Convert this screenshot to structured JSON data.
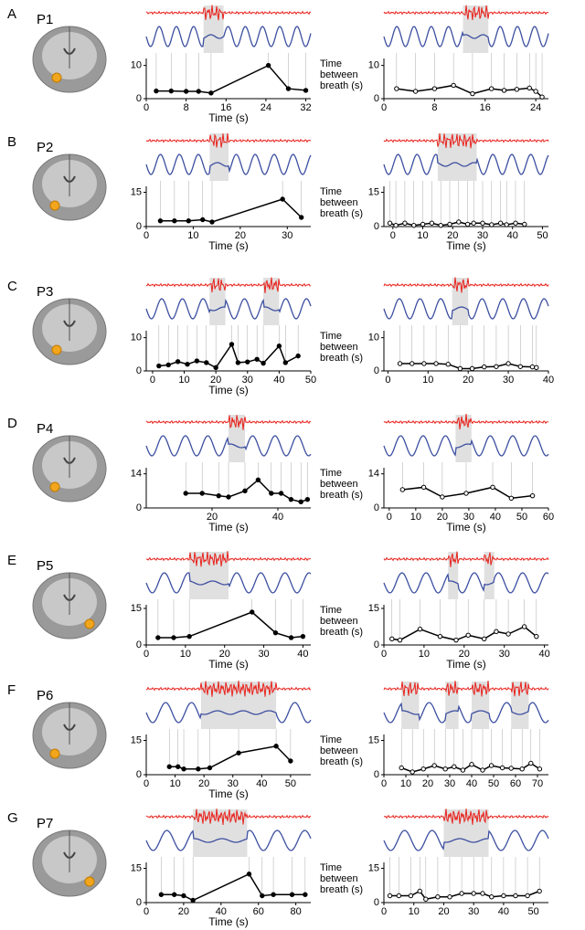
{
  "panels": [
    {
      "label": "A",
      "patient": "P1"
    },
    {
      "label": "B",
      "patient": "P2"
    },
    {
      "label": "C",
      "patient": "P3"
    },
    {
      "label": "D",
      "patient": "P4"
    },
    {
      "label": "E",
      "patient": "P5"
    },
    {
      "label": "F",
      "patient": "P6"
    },
    {
      "label": "G",
      "patient": "P7"
    }
  ],
  "chart_data": [
    {
      "type": "line",
      "color": "#000",
      "xlabel": "Time (s)",
      "ylabel": [
        "Time",
        "between",
        "breath (s)"
      ],
      "xlim": [
        0,
        33
      ],
      "xticks": [
        0,
        8,
        16,
        24,
        32
      ],
      "ylim": [
        0,
        11
      ],
      "yticks": [
        0,
        10
      ],
      "shaded": [
        [
          11.5,
          15.5
        ]
      ],
      "x": [
        2,
        5,
        8,
        10.5,
        13,
        24.5,
        28.5,
        32
      ],
      "values": [
        2.3,
        2.3,
        2.2,
        2.2,
        1.7,
        10,
        3,
        2.5
      ]
    },
    {
      "type": "line",
      "color": "#000",
      "xlim": [
        0,
        26
      ],
      "xticks": [
        0,
        8,
        16,
        24
      ],
      "ylim": [
        0,
        11
      ],
      "yticks": [
        0,
        10
      ],
      "shaded": [
        [
          12.5,
          16.5
        ]
      ],
      "x": [
        2,
        5,
        8,
        11,
        14,
        17,
        19,
        21,
        23,
        24,
        25
      ],
      "values": [
        3,
        2.2,
        3,
        4,
        1.5,
        3,
        2.5,
        2.8,
        3.2,
        2.2,
        0.5
      ]
    },
    {
      "type": "line",
      "color": "#000",
      "xlabel": "Time (s)",
      "ylabel": [
        "Time",
        "between",
        "breath (s)"
      ],
      "xlim": [
        0,
        35
      ],
      "xticks": [
        0,
        10,
        20,
        30
      ],
      "ylim": [
        0,
        16
      ],
      "yticks": [
        0,
        15
      ],
      "shaded": [
        [
          13.5,
          17.5
        ]
      ],
      "x": [
        3,
        6,
        9,
        12,
        14,
        29,
        33
      ],
      "values": [
        2.5,
        2.5,
        2.5,
        3,
        2,
        12,
        4
      ]
    },
    {
      "type": "line",
      "color": "#000",
      "xlabel": "Time (s)",
      "xlim": [
        -3,
        52
      ],
      "xticks": [
        0,
        10,
        20,
        30,
        40,
        50
      ],
      "ylim": [
        0,
        16
      ],
      "yticks": [
        0,
        15
      ],
      "shaded": [
        [
          15,
          28
        ]
      ],
      "x": [
        -1,
        1,
        4,
        7,
        10,
        13,
        16,
        19,
        22,
        25,
        27,
        30,
        33,
        36,
        38,
        41,
        44
      ],
      "values": [
        1.5,
        0.5,
        1.5,
        0.5,
        1,
        1.5,
        0.5,
        1,
        2,
        1,
        1.5,
        1.5,
        0.8,
        1.5,
        0.8,
        1.5,
        1
      ]
    },
    {
      "type": "line",
      "color": "#000",
      "xlabel": "Time (s)",
      "ylabel": [
        "Time",
        "between",
        "breath (s)"
      ],
      "xlim": [
        -2,
        50
      ],
      "xticks": [
        0,
        10,
        20,
        30,
        40,
        50
      ],
      "ylim": [
        0,
        11
      ],
      "yticks": [
        0,
        10
      ],
      "shaded": [
        [
          18,
          23
        ],
        [
          35,
          40
        ]
      ],
      "x": [
        2,
        5,
        8,
        11,
        14,
        17,
        20,
        25,
        27,
        30,
        33,
        35,
        40,
        42,
        46
      ],
      "values": [
        1.5,
        1.8,
        2.8,
        2,
        3,
        2.5,
        1,
        8,
        2.5,
        2.7,
        3.5,
        2.3,
        7.5,
        2.5,
        4.5
      ]
    },
    {
      "type": "line",
      "color": "#000",
      "xlim": [
        -1,
        40
      ],
      "xticks": [
        0,
        10,
        20,
        30,
        40
      ],
      "ylim": [
        0,
        11
      ],
      "yticks": [
        0,
        10
      ],
      "shaded": [
        [
          16,
          20
        ]
      ],
      "x": [
        3,
        6,
        9,
        12,
        15,
        18,
        21,
        24,
        27,
        30,
        33,
        36,
        37
      ],
      "values": [
        2.2,
        2.2,
        2.2,
        2.2,
        2,
        0.7,
        0.7,
        1.2,
        1.3,
        2.2,
        1.3,
        1.2,
        1
      ]
    },
    {
      "type": "line",
      "color": "#000",
      "xlabel": "Time (s)",
      "ylabel": [
        "Time",
        "between",
        "breath (s)"
      ],
      "xlim": [
        0,
        50
      ],
      "xticks": [
        20,
        40
      ],
      "ylim": [
        0,
        15
      ],
      "yticks": [
        0,
        14
      ],
      "shaded": [
        [
          25,
          30
        ]
      ],
      "x": [
        12,
        17,
        22,
        25,
        30,
        34,
        38,
        41,
        44,
        47,
        49
      ],
      "values": [
        6,
        6,
        5,
        4.5,
        7,
        11.5,
        6,
        6,
        3.5,
        2.5,
        3.5
      ]
    },
    {
      "type": "line",
      "color": "#000",
      "xlabel": "Time (s)",
      "xlim": [
        -2,
        60
      ],
      "xticks": [
        0,
        10,
        20,
        30,
        40,
        50,
        60
      ],
      "ylim": [
        0,
        15
      ],
      "yticks": [
        0,
        14
      ],
      "shaded": [
        [
          25,
          31
        ]
      ],
      "x": [
        5,
        13,
        20,
        29,
        39,
        46,
        54
      ],
      "values": [
        7.5,
        8.5,
        4.5,
        6,
        8.5,
        4,
        5
      ]
    },
    {
      "type": "line",
      "color": "#000",
      "xlabel": "Time (s)",
      "ylabel": [
        "Time",
        "between",
        "breath (s)"
      ],
      "xlim": [
        0,
        42
      ],
      "xticks": [
        0,
        10,
        20,
        30,
        40
      ],
      "ylim": [
        0,
        15
      ],
      "yticks": [
        0,
        15
      ],
      "shaded": [
        [
          11,
          21
        ]
      ],
      "x": [
        3,
        7,
        11,
        27,
        33,
        37,
        40
      ],
      "values": [
        3,
        3,
        3.5,
        13.5,
        5,
        3,
        3.5
      ]
    },
    {
      "type": "line",
      "color": "#000",
      "xlabel": "Time (s)",
      "xlim": [
        0,
        41
      ],
      "xticks": [
        0,
        10,
        20,
        30,
        40
      ],
      "ylim": [
        0,
        15
      ],
      "yticks": [
        0,
        15
      ],
      "shaded": [
        [
          16,
          18.5
        ],
        [
          25,
          27.5
        ]
      ],
      "x": [
        2,
        4,
        9,
        14,
        18,
        21,
        25,
        28,
        31,
        35,
        38
      ],
      "values": [
        2.5,
        2,
        6.5,
        3.5,
        2,
        4,
        2.5,
        5.5,
        4.5,
        7.5,
        3.5
      ]
    },
    {
      "type": "line",
      "color": "#000",
      "xlabel": "Time (s)",
      "ylabel": [
        "Time",
        "between",
        "breath (s)"
      ],
      "xlim": [
        0,
        57
      ],
      "xticks": [
        0,
        10,
        20,
        30,
        40,
        50
      ],
      "ylim": [
        0,
        16
      ],
      "yticks": [
        0,
        15
      ],
      "shaded": [
        [
          19,
          45
        ]
      ],
      "x": [
        8,
        11,
        13,
        18,
        22,
        32,
        45,
        50
      ],
      "values": [
        3.5,
        3.5,
        2.5,
        2.5,
        3,
        9.5,
        12.5,
        6
      ]
    },
    {
      "type": "line",
      "color": "#000",
      "xlim": [
        0,
        75
      ],
      "xticks": [
        0,
        10,
        20,
        30,
        40,
        50,
        60,
        70
      ],
      "ylim": [
        0,
        16
      ],
      "yticks": [
        0,
        15
      ],
      "shaded": [
        [
          8,
          16
        ],
        [
          28,
          34
        ],
        [
          40,
          48
        ],
        [
          58,
          66
        ]
      ],
      "x": [
        8,
        13,
        18,
        23,
        28,
        32,
        36,
        40,
        45,
        49,
        54,
        58,
        63,
        67,
        71
      ],
      "values": [
        3,
        1.2,
        2.5,
        4,
        2.5,
        3.5,
        2,
        4.5,
        2,
        4,
        3,
        2.8,
        2.5,
        5,
        2.5
      ]
    },
    {
      "type": "line",
      "color": "#000",
      "xlabel": "Time (s)",
      "ylabel": [
        "Time",
        "between",
        "breath (s)"
      ],
      "xlim": [
        0,
        88
      ],
      "xticks": [
        0,
        20,
        40,
        60,
        80
      ],
      "ylim": [
        0,
        16
      ],
      "yticks": [
        0,
        15
      ],
      "shaded": [
        [
          25,
          54
        ]
      ],
      "x": [
        8,
        15,
        20,
        25,
        55,
        62,
        68,
        78,
        85
      ],
      "values": [
        3.5,
        3.5,
        3,
        1,
        12.5,
        3,
        3.5,
        3.5,
        3.5
      ]
    },
    {
      "type": "line",
      "color": "#000",
      "xlim": [
        0,
        55
      ],
      "xticks": [
        0,
        10,
        20,
        30,
        40,
        50
      ],
      "ylim": [
        0,
        16
      ],
      "yticks": [
        0,
        15
      ],
      "shaded": [
        [
          20,
          35
        ]
      ],
      "x": [
        2,
        5,
        9,
        12,
        14,
        18,
        22,
        26,
        30,
        33,
        36,
        40,
        44,
        48,
        52
      ],
      "values": [
        3,
        3,
        3,
        5,
        1.5,
        2.5,
        2.5,
        4,
        4,
        4,
        2.5,
        3,
        3,
        3,
        5
      ]
    }
  ]
}
